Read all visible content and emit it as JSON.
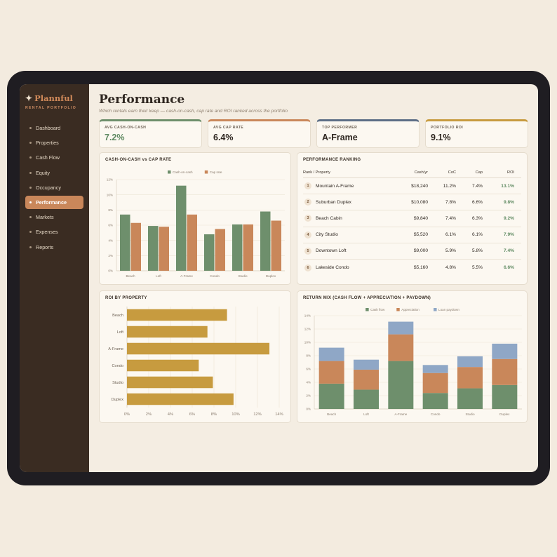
{
  "brand": {
    "name": "Plannful",
    "subtitle": "RENTAL PORTFOLIO"
  },
  "nav": [
    {
      "label": "Dashboard",
      "active": false
    },
    {
      "label": "Properties",
      "active": false
    },
    {
      "label": "Cash Flow",
      "active": false
    },
    {
      "label": "Equity",
      "active": false
    },
    {
      "label": "Occupancy",
      "active": false
    },
    {
      "label": "Performance",
      "active": true
    },
    {
      "label": "Markets",
      "active": false
    },
    {
      "label": "Expenses",
      "active": false
    },
    {
      "label": "Reports",
      "active": false
    }
  ],
  "header": {
    "title": "Performance",
    "subtitle": "Which rentals earn their keep — cash-on-cash, cap rate and ROI ranked across the portfolio"
  },
  "kpis": [
    {
      "label": "AVG CASH-ON-CASH",
      "value": "7.2%",
      "accent": "#6e8f6c",
      "value_color": "#5f8a62"
    },
    {
      "label": "AVG CAP RATE",
      "value": "6.4%",
      "accent": "#c9875a",
      "value_color": "#2e2620"
    },
    {
      "label": "TOP PERFORMER",
      "value": "A-Frame",
      "accent": "#5c6e86",
      "value_color": "#2e2620"
    },
    {
      "label": "PORTFOLIO ROI",
      "value": "9.1%",
      "accent": "#c79b3f",
      "value_color": "#2e2620"
    }
  ],
  "panels": {
    "coc_cap_title": "CASH-ON-CASH vs CAP RATE",
    "ranking_title": "PERFORMANCE RANKING",
    "roi_title": "ROI BY PROPERTY",
    "mix_title": "RETURN MIX (CASH FLOW + APPRECIATION + PAYDOWN)"
  },
  "ranking": {
    "headers": {
      "property": "Rank / Property",
      "cash": "Cash/yr",
      "coc": "CoC",
      "cap": "Cap",
      "roi": "ROI"
    },
    "rows": [
      {
        "rank": "1",
        "property": "Mountain A-Frame",
        "cash": "$18,240",
        "coc": "11.2%",
        "cap": "7.4%",
        "roi": "13.1%"
      },
      {
        "rank": "2",
        "property": "Suburban Duplex",
        "cash": "$10,080",
        "coc": "7.8%",
        "cap": "6.6%",
        "roi": "9.8%"
      },
      {
        "rank": "3",
        "property": "Beach Cabin",
        "cash": "$9,840",
        "coc": "7.4%",
        "cap": "6.3%",
        "roi": "9.2%"
      },
      {
        "rank": "4",
        "property": "City Studio",
        "cash": "$5,520",
        "coc": "6.1%",
        "cap": "6.1%",
        "roi": "7.9%"
      },
      {
        "rank": "5",
        "property": "Downtown Loft",
        "cash": "$9,000",
        "coc": "5.9%",
        "cap": "5.8%",
        "roi": "7.4%"
      },
      {
        "rank": "6",
        "property": "Lakeside Condo",
        "cash": "$5,160",
        "coc": "4.8%",
        "cap": "5.5%",
        "roi": "6.6%"
      }
    ]
  },
  "chart_data": [
    {
      "id": "coc_cap",
      "type": "bar",
      "title": "CASH-ON-CASH vs CAP RATE",
      "categories": [
        "Beach",
        "Loft",
        "A-Frame",
        "Condo",
        "Studio",
        "Duplex"
      ],
      "series": [
        {
          "name": "Cash-on-cash",
          "color": "#6e8f6c",
          "values": [
            7.4,
            5.9,
            11.2,
            4.8,
            6.1,
            7.8
          ]
        },
        {
          "name": "Cap rate",
          "color": "#c9875a",
          "values": [
            6.3,
            5.8,
            7.4,
            5.5,
            6.1,
            6.6
          ]
        }
      ],
      "ylim": [
        0,
        12
      ],
      "yticks": [
        "0%",
        "2%",
        "4%",
        "6%",
        "8%",
        "10%",
        "12%"
      ],
      "legend": "top-center",
      "grid": true
    },
    {
      "id": "roi",
      "type": "bar",
      "orientation": "horizontal",
      "title": "ROI BY PROPERTY",
      "categories": [
        "Beach",
        "Loft",
        "A-Frame",
        "Condo",
        "Studio",
        "Duplex"
      ],
      "values": [
        9.2,
        7.4,
        13.1,
        6.6,
        7.9,
        9.8
      ],
      "color": "#c79b3f",
      "xlim": [
        0,
        14
      ],
      "xticks": [
        "0%",
        "2%",
        "4%",
        "6%",
        "8%",
        "10%",
        "12%",
        "14%"
      ],
      "grid": true
    },
    {
      "id": "mix",
      "type": "bar",
      "stacked": true,
      "title": "RETURN MIX (CASH FLOW + APPRECIATION + PAYDOWN)",
      "categories": [
        "Beach",
        "Loft",
        "A-Frame",
        "Condo",
        "Studio",
        "Duplex"
      ],
      "series": [
        {
          "name": "Cash flow",
          "color": "#6e8f6c",
          "values": [
            3.8,
            2.9,
            7.2,
            2.4,
            3.1,
            3.6
          ]
        },
        {
          "name": "Appreciation",
          "color": "#c9875a",
          "values": [
            3.4,
            3.0,
            4.0,
            3.0,
            3.2,
            3.9
          ]
        },
        {
          "name": "Loan paydown",
          "color": "#8fa7c6",
          "values": [
            2.0,
            1.5,
            1.9,
            1.2,
            1.6,
            2.3
          ]
        }
      ],
      "ylim": [
        0,
        14
      ],
      "yticks": [
        "0%",
        "2%",
        "4%",
        "6%",
        "8%",
        "10%",
        "12%",
        "14%"
      ],
      "legend": "top-center",
      "grid": true
    }
  ]
}
